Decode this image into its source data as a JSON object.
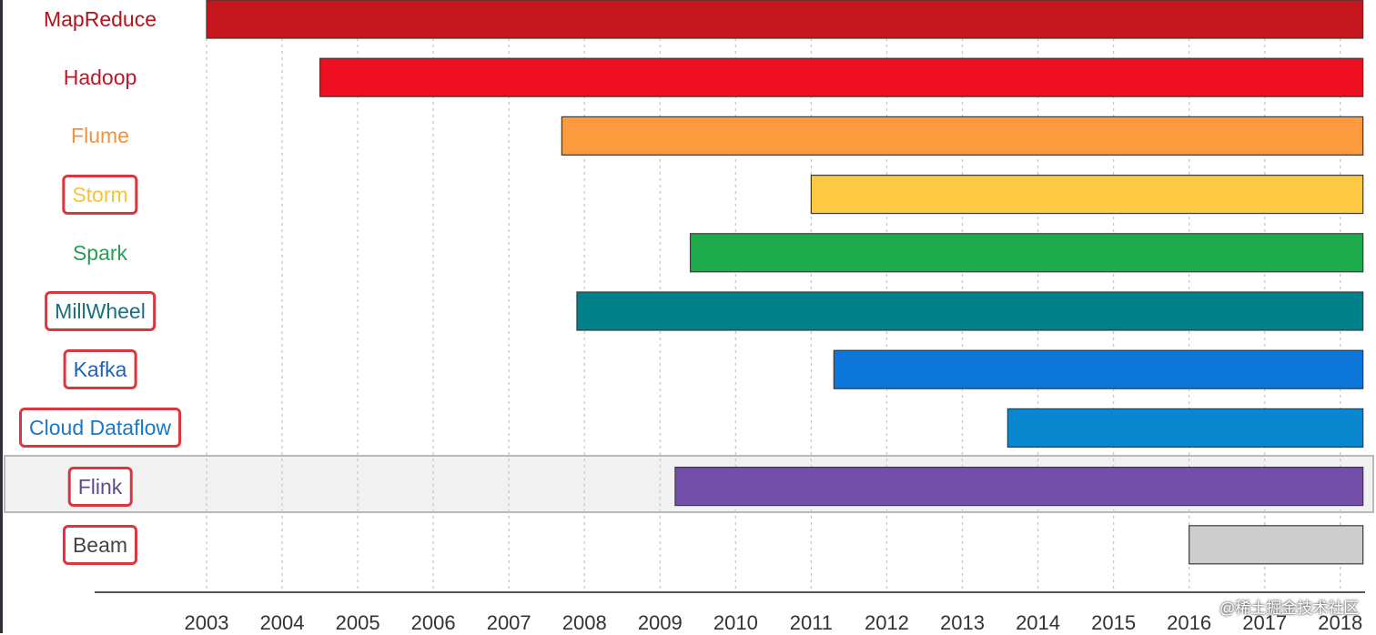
{
  "chart_data": {
    "type": "bar",
    "orientation": "horizontal-timeline",
    "title": "",
    "xlabel": "",
    "ylabel": "",
    "xlim": [
      2003,
      2018.4
    ],
    "years": [
      "2003",
      "2004",
      "2005",
      "2006",
      "2007",
      "2008",
      "2009",
      "2010",
      "2011",
      "2012",
      "2013",
      "2014",
      "2015",
      "2016",
      "2017",
      "2018"
    ],
    "grid": "vertical-dashed",
    "series": [
      {
        "label": "MapReduce",
        "start": 2003.0,
        "end": 2018.3,
        "color": "#c4161c",
        "label_color": "#b3141a",
        "boxed": false
      },
      {
        "label": "Hadoop",
        "start": 2004.5,
        "end": 2018.3,
        "color": "#ee1021",
        "label_color": "#c0172a",
        "boxed": false
      },
      {
        "label": "Flume",
        "start": 2007.7,
        "end": 2018.3,
        "color": "#fd9a3d",
        "label_color": "#f0923e",
        "boxed": false
      },
      {
        "label": "Storm",
        "start": 2011.0,
        "end": 2018.3,
        "color": "#fdc943",
        "label_color": "#f5c33e",
        "boxed": true
      },
      {
        "label": "Spark",
        "start": 2009.4,
        "end": 2018.3,
        "color": "#1dab4c",
        "label_color": "#2a9c55",
        "boxed": false
      },
      {
        "label": "MillWheel",
        "start": 2007.9,
        "end": 2018.3,
        "color": "#00818a",
        "label_color": "#1a6f78",
        "boxed": true
      },
      {
        "label": "Kafka",
        "start": 2011.3,
        "end": 2018.3,
        "color": "#0c77d8",
        "label_color": "#1f63b8",
        "boxed": true
      },
      {
        "label": "Cloud Dataflow",
        "start": 2013.6,
        "end": 2018.3,
        "color": "#0a88cf",
        "label_color": "#1b78c4",
        "boxed": true
      },
      {
        "label": "Flink",
        "start": 2009.2,
        "end": 2018.3,
        "color": "#744faa",
        "label_color": "#5f4a8c",
        "boxed": true
      },
      {
        "label": "Beam",
        "start": 2016.0,
        "end": 2018.3,
        "color": "#cdcdcd",
        "label_color": "#444444",
        "boxed": true
      }
    ],
    "highlighted_row": "Flink"
  },
  "watermark": "@稀土掘金技术社区"
}
